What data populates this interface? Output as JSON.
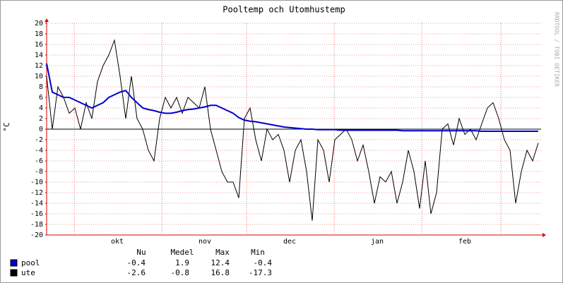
{
  "chart_data": {
    "type": "line",
    "title": "Pooltemp och Utomhustemp",
    "y_label": "°C",
    "side_text": "RRDTOOL / TOBI OETIKER",
    "ylim": [
      -20,
      20
    ],
    "yticks": [
      -20,
      -18,
      -16,
      -14,
      -12,
      -10,
      -8,
      -6,
      -4,
      -2,
      0,
      2,
      4,
      6,
      8,
      10,
      12,
      14,
      16,
      18,
      20
    ],
    "xlim": [
      0,
      87.5
    ],
    "xticks": [
      {
        "value": 12.5,
        "label": "okt"
      },
      {
        "value": 28,
        "label": "nov"
      },
      {
        "value": 43,
        "label": "dec"
      },
      {
        "value": 58.5,
        "label": "jan"
      },
      {
        "value": 74,
        "label": "feb"
      }
    ],
    "xgrid": [
      4.9,
      20.4,
      35.4,
      50.9,
      66.4,
      80.4
    ],
    "grid": true,
    "stat_headers": [
      "Nu",
      "Medel",
      "Max",
      "Min"
    ],
    "series": [
      {
        "name": "pool",
        "color": "#0000cc",
        "stats": [
          -0.4,
          1.9,
          12.4,
          -0.4
        ],
        "values": [
          12.4,
          7,
          6.5,
          6,
          6,
          5.5,
          5,
          4.5,
          4,
          4.5,
          5,
          6,
          6.5,
          7,
          7.3,
          6,
          5,
          4,
          3.7,
          3.5,
          3.2,
          3,
          3,
          3.2,
          3.5,
          3.7,
          3.8,
          4,
          4.2,
          4.5,
          4.5,
          4,
          3.5,
          3,
          2.2,
          1.7,
          1.5,
          1.4,
          1.2,
          1,
          0.8,
          0.6,
          0.4,
          0.3,
          0.2,
          0.1,
          0,
          0,
          -0.1,
          -0.1,
          -0.1,
          -0.1,
          -0.2,
          -0.2,
          -0.2,
          -0.2,
          -0.2,
          -0.2,
          -0.2,
          -0.2,
          -0.2,
          -0.2,
          -0.2,
          -0.3,
          -0.3,
          -0.3,
          -0.3,
          -0.3,
          -0.3,
          -0.3,
          -0.3,
          -0.3,
          -0.3,
          -0.3,
          -0.3,
          -0.3,
          -0.3,
          -0.4,
          -0.4,
          -0.4,
          -0.4,
          -0.4,
          -0.4,
          -0.4,
          -0.4,
          -0.4,
          -0.4,
          -0.4
        ]
      },
      {
        "name": "ute",
        "color": "#000000",
        "stats": [
          -2.6,
          -0.8,
          16.8,
          -17.3
        ],
        "values": [
          10,
          0,
          8,
          6,
          3,
          4,
          0,
          5,
          2,
          9,
          12,
          14,
          16.8,
          10,
          2,
          10,
          2,
          0,
          -4,
          -6,
          2,
          6,
          4,
          6,
          3,
          6,
          5,
          4,
          8,
          0,
          -4,
          -8,
          -10,
          -10,
          -13,
          2,
          4,
          -2,
          -6,
          0,
          -2,
          -1,
          -4,
          -10,
          -4,
          -2,
          -8,
          -17.3,
          -2,
          -4,
          -10,
          -2,
          -1,
          0,
          -2,
          -6,
          -3,
          -8,
          -14,
          -9,
          -10,
          -8,
          -14,
          -10,
          -4,
          -8,
          -15,
          -6,
          -16,
          -12,
          0,
          1,
          -3,
          2,
          -1,
          0,
          -2,
          1,
          4,
          5,
          2,
          -2,
          -4,
          -14,
          -8,
          -4,
          -6,
          -2.6
        ]
      }
    ]
  }
}
